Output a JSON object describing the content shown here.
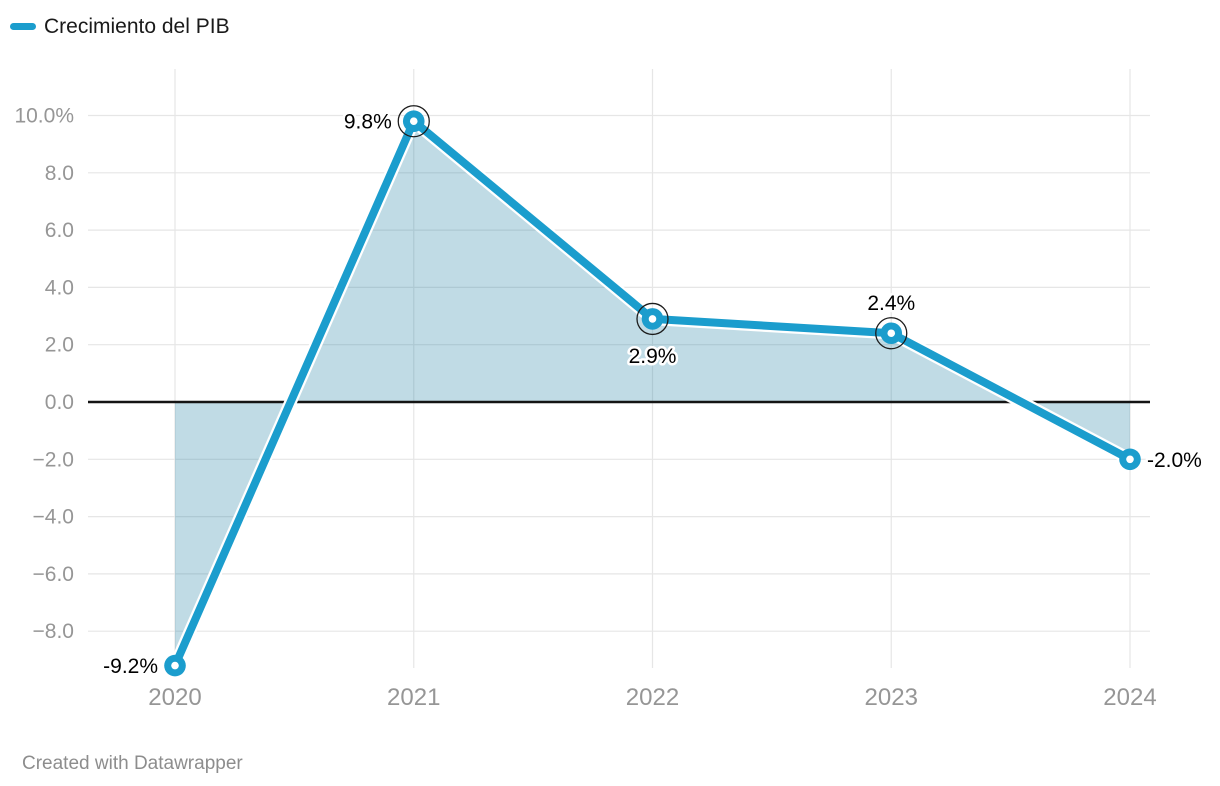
{
  "legend": {
    "label": "Crecimiento del PIB"
  },
  "footer": {
    "text": "Created with Datawrapper"
  },
  "chart_data": {
    "type": "area",
    "title": "",
    "xlabel": "",
    "ylabel": "",
    "categories": [
      "2020",
      "2021",
      "2022",
      "2023",
      "2024"
    ],
    "series": [
      {
        "name": "Crecimiento del PIB",
        "values": [
          -9.2,
          9.8,
          2.9,
          2.4,
          -2.0
        ]
      }
    ],
    "point_labels": [
      "-9.2%",
      "9.8%",
      "2.9%",
      "2.4%",
      "-2.0%"
    ],
    "label_positions": [
      "left",
      "left",
      "below",
      "above",
      "right"
    ],
    "ringed_points": [
      1,
      2,
      3
    ],
    "yticks": {
      "values": [
        10,
        8,
        6,
        4,
        2,
        0,
        -2,
        -4,
        -6,
        -8
      ],
      "labels": [
        "10.0%",
        "8.0",
        "6.0",
        "4.0",
        "2.0",
        "0.0",
        "−2.0",
        "−4.0",
        "−6.0",
        "−8.0"
      ]
    },
    "ylim": [
      -9.6,
      10.6
    ],
    "grid": "on",
    "legend_position": "top-left",
    "baseline_value": 0,
    "colors": {
      "line": "#1b9dcd",
      "area_fill": "rgba(27,125,160,0.28)",
      "zero_line": "#141414",
      "grid": "#e6e6e6",
      "axis_text": "#969696",
      "label_text": "#000000",
      "marker_center": "#ffffff",
      "ring": "#1c1c1c"
    }
  }
}
